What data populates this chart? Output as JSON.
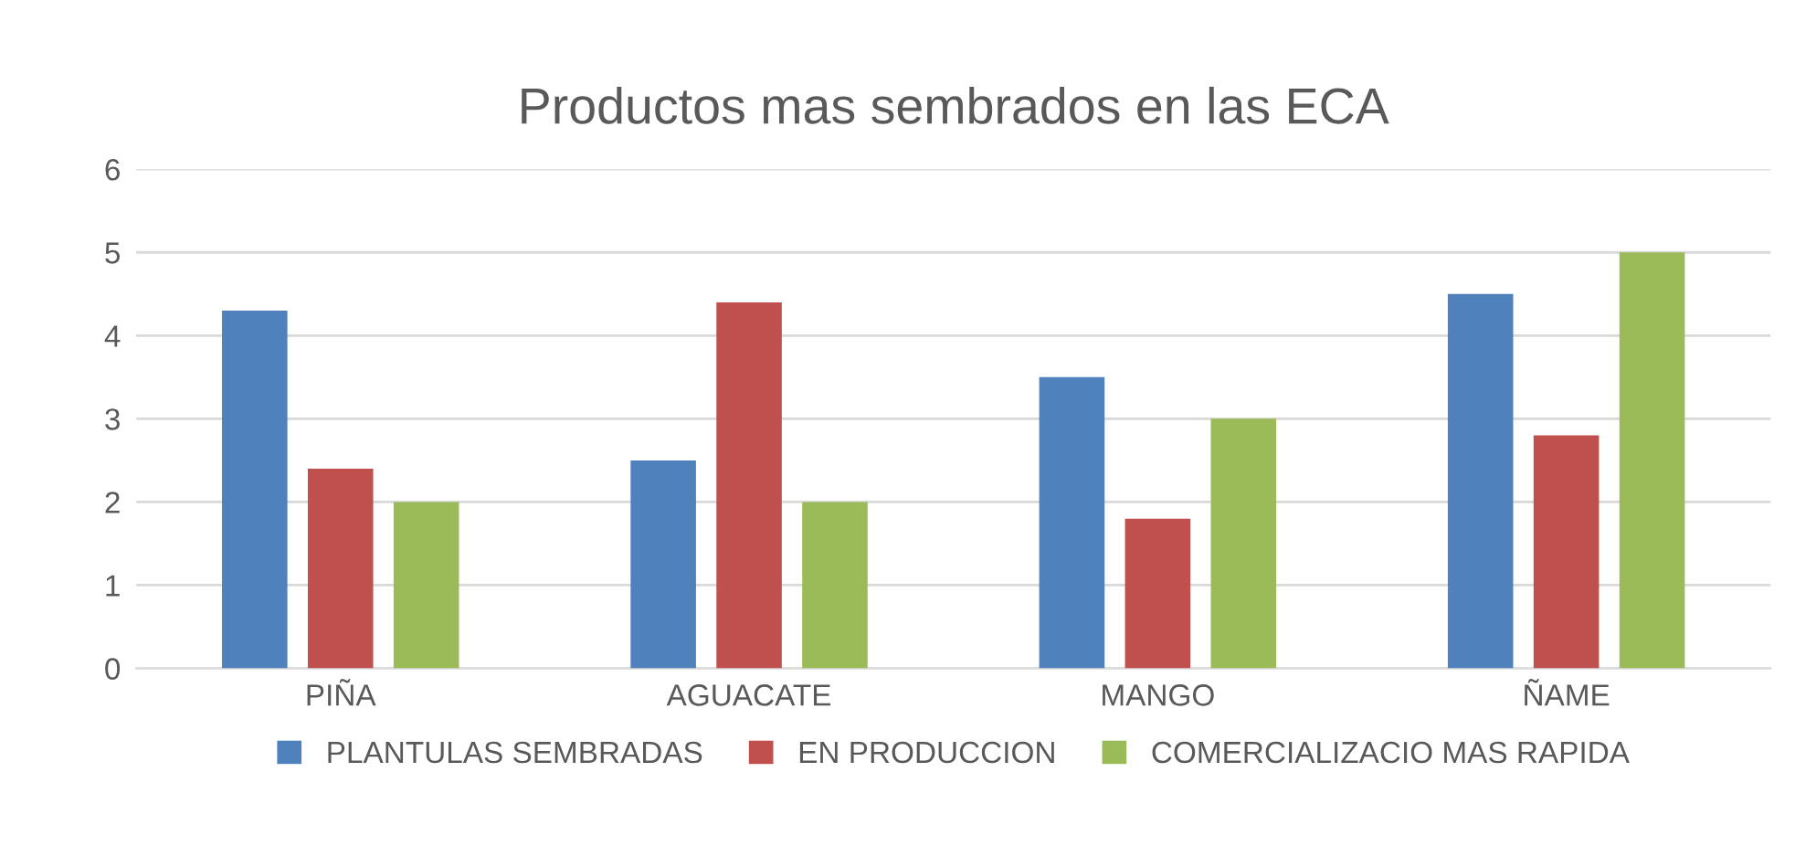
{
  "chart_data": {
    "type": "bar",
    "title": "Productos mas sembrados en las ECA",
    "categories": [
      "PIÑA",
      "AGUACATE",
      "MANGO",
      "ÑAME"
    ],
    "series": [
      {
        "name": "PLANTULAS SEMBRADAS",
        "color": "#4f81bd",
        "values": [
          4.3,
          2.5,
          3.5,
          4.5
        ]
      },
      {
        "name": "EN PRODUCCION",
        "color": "#c0504d",
        "values": [
          2.4,
          4.4,
          1.8,
          2.8
        ]
      },
      {
        "name": "COMERCIALIZACIO MAS RAPIDA",
        "color": "#9bbb59",
        "values": [
          2.0,
          2.0,
          3.0,
          5.0
        ]
      }
    ],
    "ylim": [
      0,
      6
    ],
    "yticks": [
      0,
      1,
      2,
      3,
      4,
      5,
      6
    ],
    "grid": "y",
    "legend": "bottom"
  }
}
